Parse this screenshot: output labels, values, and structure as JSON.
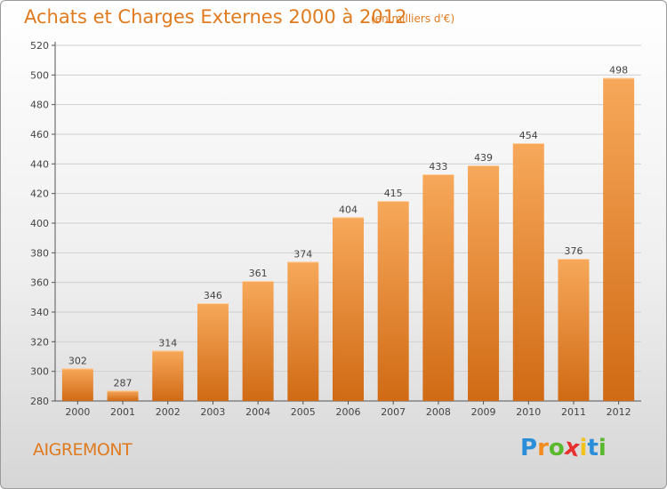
{
  "header": {
    "title": "Achats et Charges Externes 2000 à 2012",
    "subtitle": "(en milliers d'€)"
  },
  "footer": {
    "city": "AIGREMONT",
    "logo_letters": [
      "P",
      "r",
      "o",
      "x",
      "i",
      "t",
      "i"
    ],
    "logo_colors": [
      "#2a8fd8",
      "#f28c1e",
      "#5ab82e",
      "#e8312f",
      "#f2c21e",
      "#2a8fd8",
      "#5ab82e"
    ]
  },
  "chart_data": {
    "type": "bar",
    "categories": [
      "2000",
      "2001",
      "2002",
      "2003",
      "2004",
      "2005",
      "2006",
      "2007",
      "2008",
      "2009",
      "2010",
      "2011",
      "2012"
    ],
    "values": [
      302,
      287,
      314,
      346,
      361,
      374,
      404,
      415,
      433,
      439,
      454,
      376,
      498
    ],
    "ylim": [
      280,
      520
    ],
    "yticks": [
      280,
      300,
      320,
      340,
      360,
      380,
      400,
      420,
      440,
      460,
      480,
      500,
      520
    ],
    "grid": true,
    "bar_color_top": "#f7a85a",
    "bar_color_bottom": "#d06a14"
  }
}
